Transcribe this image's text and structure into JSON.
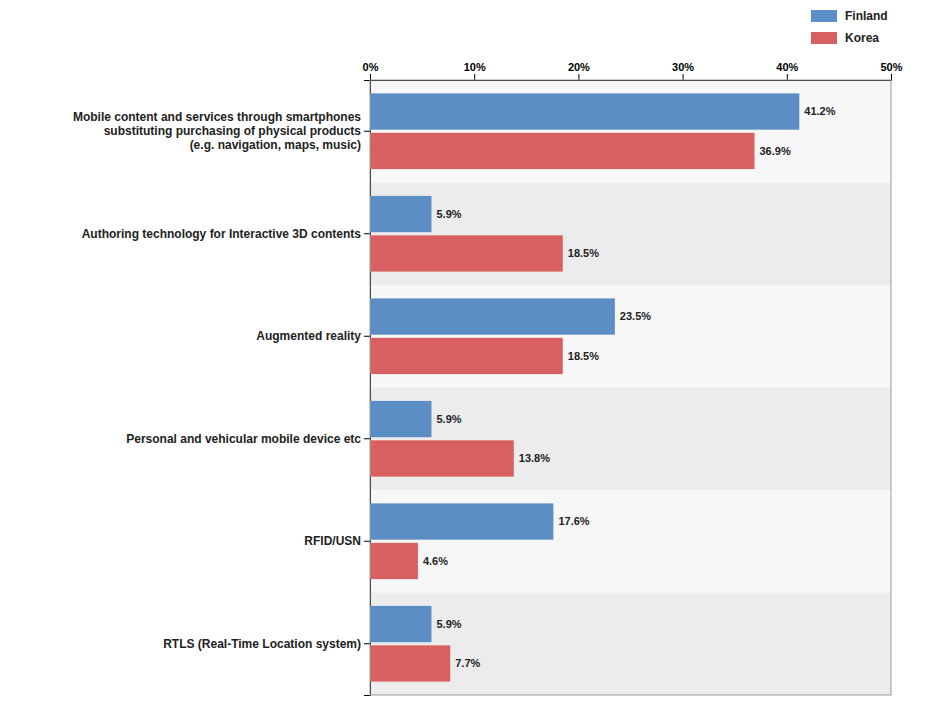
{
  "chart_data": {
    "type": "bar",
    "orientation": "horizontal",
    "categories": [
      "Mobile content and services through smartphones\nsubstituting purchasing of physical products\n(e.g. navigation, maps, music)",
      "Authoring technology for Interactive 3D contents",
      "Augmented reality",
      "Personal and vehicular mobile device etc",
      "RFID/USN",
      "RTLS (Real-Time Location system)"
    ],
    "series": [
      {
        "name": "Finland",
        "color": "#5b8ec4",
        "values": [
          41.2,
          5.9,
          23.5,
          5.9,
          17.6,
          5.9
        ],
        "value_labels": [
          "41.2%",
          "5.9%",
          "23.5%",
          "5.9%",
          "17.6%",
          "5.9%"
        ]
      },
      {
        "name": "Korea",
        "color": "#d96060",
        "values": [
          36.9,
          18.5,
          18.5,
          13.8,
          4.6,
          7.7
        ],
        "value_labels": [
          "36.9%",
          "18.5%",
          "18.5%",
          "13.8%",
          "4.6%",
          "7.7%"
        ]
      }
    ],
    "xlim": [
      0,
      50
    ],
    "xticks": [
      {
        "value": 0,
        "label": "0%"
      },
      {
        "value": 10,
        "label": "10%"
      },
      {
        "value": 20,
        "label": "20%"
      },
      {
        "value": 30,
        "label": "30%"
      },
      {
        "value": 40,
        "label": "40%"
      },
      {
        "value": 50,
        "label": "50%"
      }
    ],
    "data_labels": true,
    "legend": "upper right"
  }
}
